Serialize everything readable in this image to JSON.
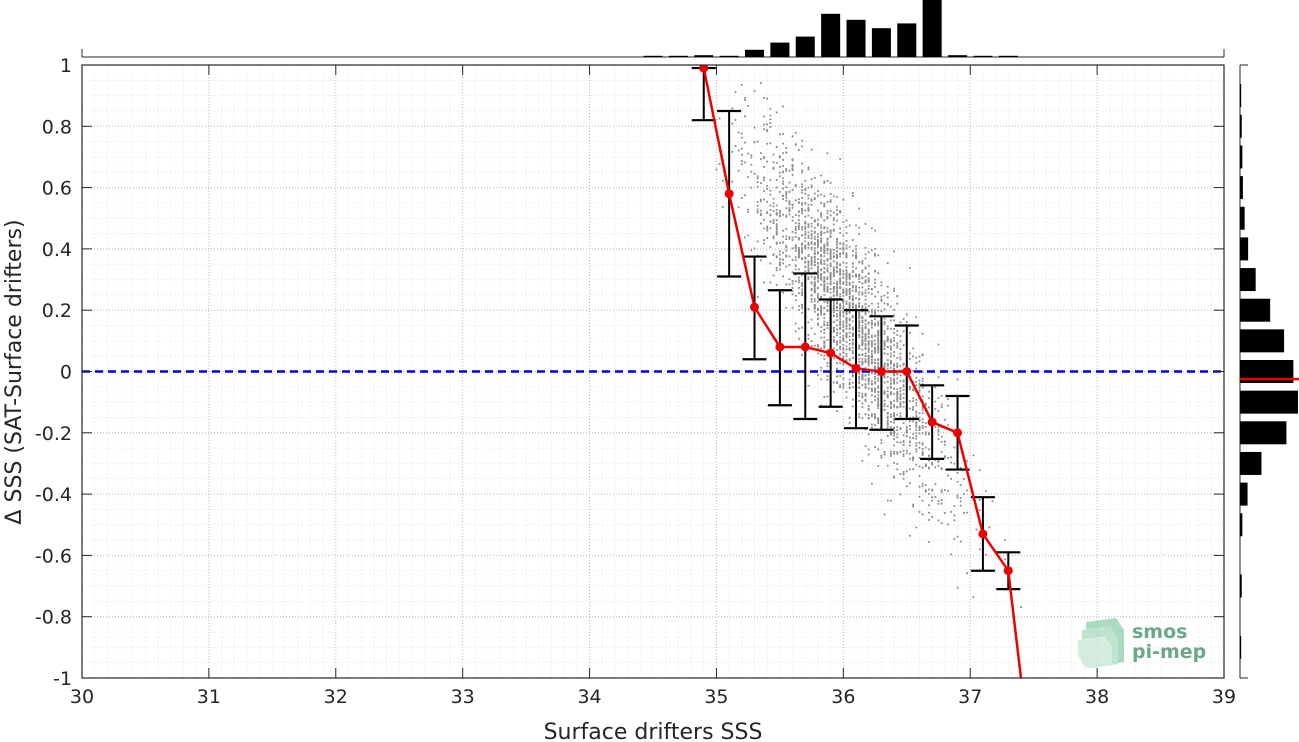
{
  "chart_data": {
    "type": "scatter",
    "xlabel": "Surface drifters SSS",
    "ylabel": "Δ SSS (SAT-Surface drifters)",
    "xlim": [
      30,
      39
    ],
    "ylim": [
      -1,
      1
    ],
    "x_ticks": [
      30,
      31,
      32,
      33,
      34,
      35,
      36,
      37,
      38,
      39
    ],
    "y_ticks": [
      -1,
      -0.8,
      -0.6,
      -0.4,
      -0.2,
      0,
      0.2,
      0.4,
      0.6,
      0.8,
      1
    ],
    "x_tick_labels": [
      "30",
      "31",
      "32",
      "33",
      "34",
      "35",
      "36",
      "37",
      "38",
      "39"
    ],
    "y_tick_labels": [
      "-1",
      "-0.8",
      "-0.6",
      "-0.4",
      "-0.2",
      "0",
      "0.2",
      "0.4",
      "0.6",
      "0.8",
      "1"
    ],
    "grid": "on (major and minor, dotted)",
    "reference_line": {
      "y": 0,
      "style": "dashed",
      "color": "#0000dd"
    },
    "scatter_cloud": {
      "color": "#8c8c8c",
      "description": "dense cloud of individual match-ups between SSS 35 and 37.5, with a negative trend",
      "x_range": [
        35.0,
        37.6
      ],
      "trend": {
        "at_x": [
          35.0,
          37.5
        ],
        "center_y": [
          0.85,
          -0.75
        ]
      },
      "spread_y": 0.14
    },
    "binned_series": {
      "color": "#ee0000",
      "x": [
        34.9,
        35.1,
        35.3,
        35.5,
        35.7,
        35.9,
        36.1,
        36.3,
        36.5,
        36.7,
        36.9,
        37.1,
        37.3
      ],
      "y": [
        0.99,
        0.58,
        0.21,
        0.08,
        0.08,
        0.06,
        0.01,
        0.0,
        0.0,
        -0.165,
        -0.2,
        -0.53,
        -0.65
      ],
      "y_low": [
        0.82,
        0.31,
        0.04,
        -0.11,
        -0.155,
        -0.115,
        -0.185,
        -0.19,
        -0.155,
        -0.285,
        -0.32,
        -0.65,
        -0.71
      ],
      "y_high": [
        0.99,
        0.85,
        0.375,
        0.265,
        0.32,
        0.235,
        0.2,
        0.18,
        0.15,
        -0.045,
        -0.08,
        -0.41,
        -0.59
      ],
      "line_continues_to": {
        "x": 37.4,
        "y": -1.0
      }
    },
    "top_histogram": {
      "color": "#000000",
      "bin_centers": [
        34.5,
        34.7,
        34.9,
        35.1,
        35.3,
        35.5,
        35.7,
        35.9,
        36.1,
        36.3,
        36.5,
        36.7,
        36.9,
        37.1,
        37.3
      ],
      "relative_heights": [
        0.02,
        0.02,
        0.03,
        0.02,
        0.12,
        0.24,
        0.34,
        0.72,
        0.62,
        0.48,
        0.56,
        1.0,
        0.03,
        0.02,
        0.02
      ]
    },
    "right_histogram": {
      "color": "#000000",
      "bin_centers": [
        -0.9,
        -0.7,
        -0.5,
        -0.4,
        -0.3,
        -0.2,
        -0.1,
        0.0,
        0.1,
        0.2,
        0.3,
        0.4,
        0.5,
        0.6,
        0.7,
        0.8,
        0.9
      ],
      "relative_widths": [
        0.02,
        0.03,
        0.04,
        0.13,
        0.37,
        0.8,
        1.0,
        0.92,
        0.76,
        0.52,
        0.27,
        0.14,
        0.08,
        0.05,
        0.04,
        0.03,
        0.02
      ],
      "median_marker": {
        "y": -0.025,
        "color": "#ee0000"
      }
    }
  },
  "logo": {
    "line1": "smos",
    "line2": "pi-mep",
    "color": "#6aa88a"
  }
}
